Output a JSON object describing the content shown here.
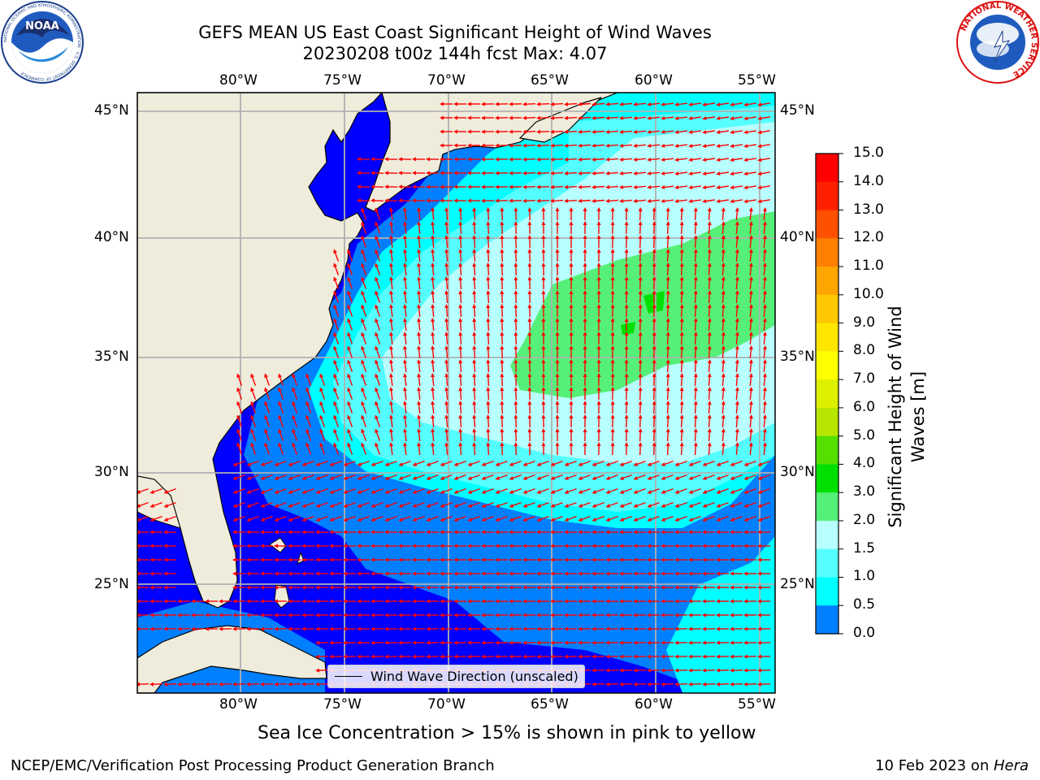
{
  "title": {
    "line1": "GEFS MEAN US East Coast Significant Height of Wind Waves",
    "line2": "20230208 t00z 144h fcst   Max: 4.07"
  },
  "logos": {
    "left": "noaa-logo",
    "right": "nws-logo",
    "left_text": "NOAA",
    "left_ring_text": "NATIONAL OCEANIC AND ATMOSPHERIC ADMINISTRATION · U.S. DEPARTMENT OF COMMERCE",
    "right_ring_text": "NATIONAL WEATHER SERVICE"
  },
  "map": {
    "longitude_labels": [
      "80°W",
      "75°W",
      "70°W",
      "65°W",
      "60°W",
      "55°W"
    ],
    "latitude_labels": [
      "45°N",
      "40°N",
      "35°N",
      "30°N",
      "25°N"
    ],
    "legend_label": "Wind Wave Direction (unscaled)",
    "land_color": "#efecdc",
    "grid_color": "#b0b0b0",
    "arrow_color": "#ff0000"
  },
  "colorbar": {
    "title_line1": "Significant Height of Wind",
    "title_line2": "Waves [m]",
    "ticks": [
      "15.0",
      "14.0",
      "13.0",
      "12.0",
      "11.0",
      "10.0",
      "9.0",
      "8.0",
      "7.0",
      "6.0",
      "5.0",
      "4.0",
      "3.0",
      "2.0",
      "1.5",
      "1.0",
      "0.5",
      "0.0"
    ],
    "colors": [
      "#ff0000",
      "#ff2000",
      "#ff5000",
      "#ff8000",
      "#ffa500",
      "#ffc800",
      "#ffe600",
      "#ffff00",
      "#ddf000",
      "#b8e600",
      "#55e000",
      "#00e000",
      "#55f078",
      "#b8ffff",
      "#55ffff",
      "#00ffff",
      "#0080ff",
      "#0000ff"
    ]
  },
  "subtitle": "Sea Ice Concentration > 15% is shown in pink to yellow",
  "footer": {
    "left": "NCEP/EMC/Verification Post Processing Product Generation Branch",
    "right_prefix": "10 Feb 2023 on ",
    "right_host": "Hera"
  }
}
